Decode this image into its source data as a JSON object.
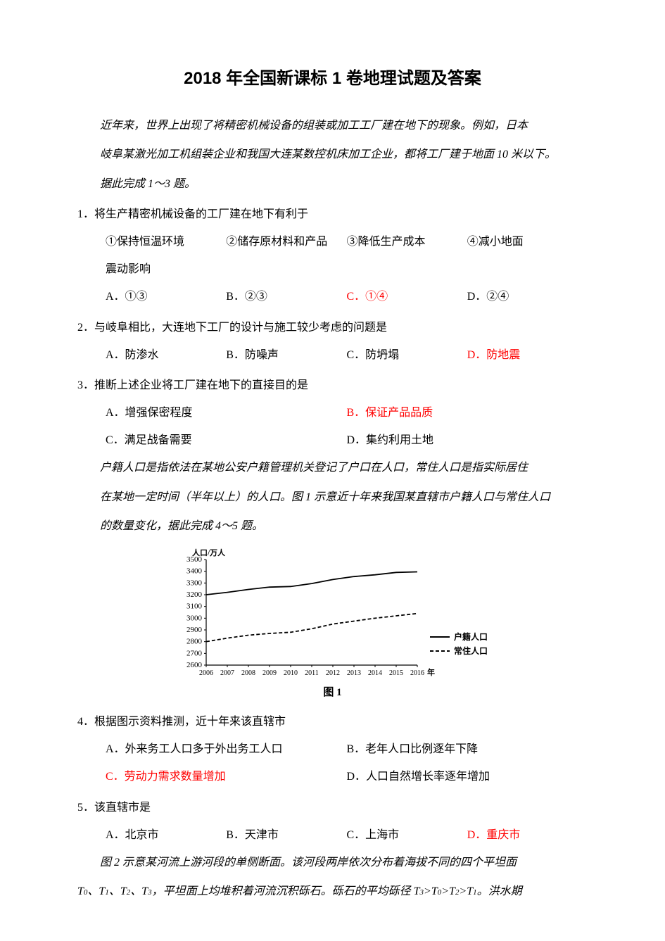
{
  "title": "2018 年全国新课标 1 卷地理试题及答案",
  "passage1_l1": "近年来，世界上出现了将精密机械设备的组装或加工工厂建在地下的现象。例如，日本",
  "passage1_l2": "岐阜某激光加工机组装企业和我国大连某数控机床加工企业，都将工厂建于地面 10 米以下。",
  "passage1_l3": "据此完成 1～3 题。",
  "q1": {
    "stem": "1．将生产精密机械设备的工厂建在地下有利于",
    "sub1": "①保持恒温环境",
    "sub2": "②储存原材料和产品",
    "sub3": "③降低生产成本",
    "sub4": "④减小地面",
    "sub_cont": "震动影响",
    "A": "A．①③",
    "B": "B．②③",
    "C": "C．①④",
    "D": "D．②④"
  },
  "q2": {
    "stem": "2．与岐阜相比，大连地下工厂的设计与施工较少考虑的问题是",
    "A": "A．防渗水",
    "B": "B．防噪声",
    "C": "C．防坍塌",
    "D": "D．防地震"
  },
  "q3": {
    "stem": "3．推断上述企业将工厂建在地下的直接目的是",
    "A": "A．增强保密程度",
    "B": "B．保证产品品质",
    "C": "C．满足战备需要",
    "D": "D．集约利用土地"
  },
  "passage2_l1": "户籍人口是指依法在某地公安户籍管理机关登记了户口在人口，常住人口是指实际居住",
  "passage2_l2": "在某地一定时间（半年以上）的人口。图 1 示意近十年来我国某直辖市户籍人口与常住人口",
  "passage2_l3": "的数量变化，据此完成 4～5 题。",
  "chart1": {
    "type": "line",
    "y_title": "人口/万人",
    "x_title": "年",
    "caption": "图 1",
    "ylim": [
      2600,
      3500
    ],
    "ytick_step": 100,
    "y_ticks": [
      2600,
      2700,
      2800,
      2900,
      3000,
      3100,
      3200,
      3300,
      3400,
      3500
    ],
    "x_labels": [
      "2006",
      "2007",
      "2008",
      "2009",
      "2010",
      "2011",
      "2012",
      "2013",
      "2014",
      "2015",
      "2016"
    ],
    "series": [
      {
        "name": "户籍人口",
        "style": "solid",
        "color": "#000000",
        "values": [
          3200,
          3220,
          3245,
          3265,
          3270,
          3295,
          3330,
          3355,
          3370,
          3390,
          3395
        ]
      },
      {
        "name": "常住人口",
        "style": "dashed",
        "color": "#000000",
        "values": [
          2800,
          2830,
          2855,
          2870,
          2880,
          2910,
          2950,
          2975,
          3000,
          3020,
          3040
        ]
      }
    ],
    "background": "#ffffff",
    "axis_color": "#000000",
    "font_size": 11,
    "legend_font_size": 12
  },
  "q4": {
    "stem": "4．根据图示资料推测，近十年来该直辖市",
    "A": "A．外来务工人口多于外出务工人口",
    "B": "B．老年人口比例逐年下降",
    "C": "C．劳动力需求数量增加",
    "D": "D．人口自然增长率逐年增加"
  },
  "q5": {
    "stem": "5．该直辖市是",
    "A": "A．北京市",
    "B": "B．天津市",
    "C": "C．上海市",
    "D": "D．重庆市"
  },
  "passage3_l1": "图 2 示意某河流上游河段的单侧断面。该河段两岸依次分布着海拔不同的四个平坦面",
  "passage3_l2_a": "T",
  "passage3_l2_b": "、T",
  "passage3_l2_c": "、T",
  "passage3_l2_d": "、T",
  "passage3_l2_e": "，平坦面上均堆积着河流沉积砾石。砾石的平均砾径 T",
  "passage3_l2_f": ">T",
  "passage3_l2_g": ">T",
  "passage3_l2_h": ">T",
  "passage3_l2_i": "。洪水期",
  "sub0": "0",
  "sub1": "1",
  "sub2": "2",
  "sub3": "3"
}
